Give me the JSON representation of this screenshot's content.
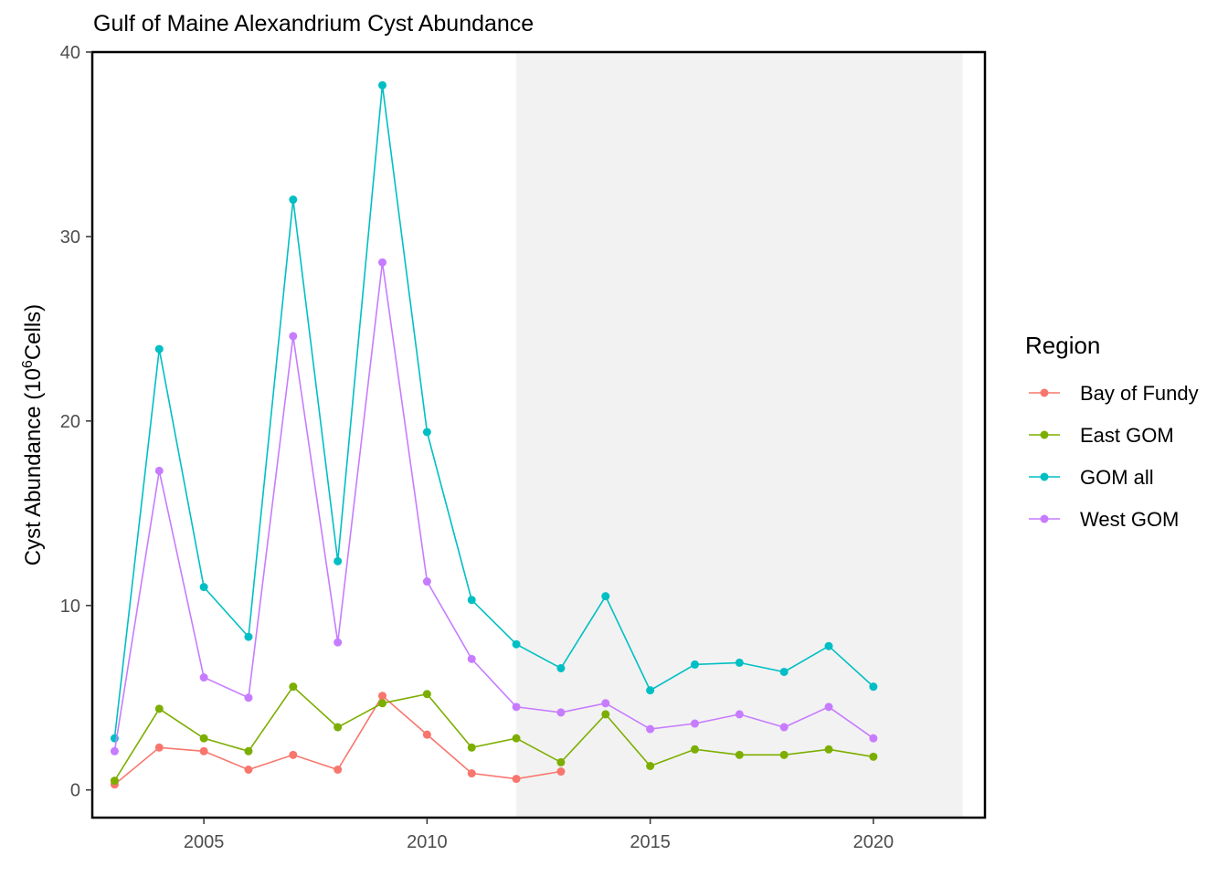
{
  "chart_data": {
    "type": "line",
    "title": "Gulf of Maine Alexandrium Cyst Abundance",
    "xlabel": "",
    "ylabel": "Cyst Abundance (10",
    "ylabel_superscript": "6",
    "ylabel_suffix": "Cells)",
    "xlim": [
      2002.5,
      2022.5
    ],
    "ylim": [
      -1.5,
      40
    ],
    "x_ticks": [
      2005,
      2010,
      2015,
      2020
    ],
    "y_ticks": [
      0,
      10,
      20,
      30,
      40
    ],
    "grid": false,
    "shaded_region": {
      "x_start": 2012,
      "x_end": 2022,
      "color": "#f2f2f2"
    },
    "legend": {
      "title": "Region",
      "placement": "right"
    },
    "series": [
      {
        "name": "Bay of Fundy",
        "color": "#F8766D",
        "x": [
          2003,
          2004,
          2005,
          2006,
          2007,
          2008,
          2009,
          2010,
          2011,
          2012,
          2013
        ],
        "values": [
          0.3,
          2.3,
          2.1,
          1.1,
          1.9,
          1.1,
          5.1,
          3.0,
          0.9,
          0.6,
          1.0
        ]
      },
      {
        "name": "East GOM",
        "color": "#7CAE00",
        "x": [
          2003,
          2004,
          2005,
          2006,
          2007,
          2008,
          2009,
          2010,
          2011,
          2012,
          2013,
          2014,
          2015,
          2016,
          2017,
          2018,
          2019,
          2020
        ],
        "values": [
          0.5,
          4.4,
          2.8,
          2.1,
          5.6,
          3.4,
          4.7,
          5.2,
          2.3,
          2.8,
          1.5,
          4.1,
          1.3,
          2.2,
          1.9,
          1.9,
          2.2,
          1.8
        ]
      },
      {
        "name": "GOM all",
        "color": "#00BFC4",
        "x": [
          2003,
          2004,
          2005,
          2006,
          2007,
          2008,
          2009,
          2010,
          2011,
          2012,
          2013,
          2014,
          2015,
          2016,
          2017,
          2018,
          2019,
          2020
        ],
        "values": [
          2.8,
          23.9,
          11.0,
          8.3,
          32.0,
          12.4,
          38.2,
          19.4,
          10.3,
          7.9,
          6.6,
          10.5,
          5.4,
          6.8,
          6.9,
          6.4,
          7.8,
          5.6
        ]
      },
      {
        "name": "West GOM",
        "color": "#C77CFF",
        "x": [
          2003,
          2004,
          2005,
          2006,
          2007,
          2008,
          2009,
          2010,
          2011,
          2012,
          2013,
          2014,
          2015,
          2016,
          2017,
          2018,
          2019,
          2020
        ],
        "values": [
          2.1,
          17.3,
          6.1,
          5.0,
          24.6,
          8.0,
          28.6,
          11.3,
          7.1,
          4.5,
          4.2,
          4.7,
          3.3,
          3.6,
          4.1,
          3.4,
          4.5,
          2.8
        ]
      }
    ]
  }
}
